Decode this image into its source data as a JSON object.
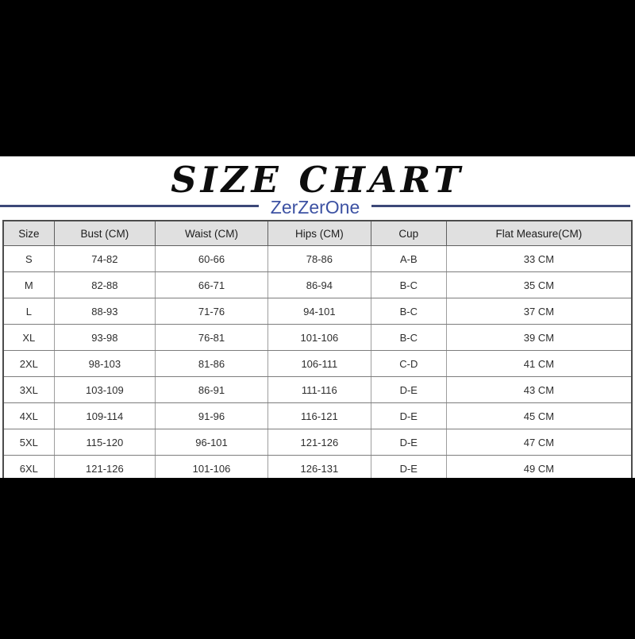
{
  "page": {
    "top_band_color": "#000000",
    "bottom_band_color": "#000000",
    "content_background": "#ffffff"
  },
  "header": {
    "title": "SIZE CHART",
    "brand": "ZerZerOne",
    "brand_color": "#3d52a3",
    "divider_line_color": "#3c4878",
    "title_color": "#0d0d0d"
  },
  "table_style": {
    "header_background": "#e0e0e0",
    "outer_border_color": "#4c4c4c",
    "inner_border_color": "#7d7d7d"
  },
  "chart_data": {
    "type": "table",
    "title": "SIZE CHART",
    "subtitle": "ZerZerOne",
    "columns": [
      "Size",
      "Bust (CM)",
      "Waist (CM)",
      "Hips (CM)",
      "Cup",
      "Flat Measure(CM)"
    ],
    "column_widths_percent": [
      8.1,
      16.1,
      17.9,
      16.4,
      12.0,
      29.5
    ],
    "rows": [
      [
        "S",
        "74-82",
        "60-66",
        "78-86",
        "A-B",
        "33 CM"
      ],
      [
        "M",
        "82-88",
        "66-71",
        "86-94",
        "B-C",
        "35 CM"
      ],
      [
        "L",
        "88-93",
        "71-76",
        "94-101",
        "B-C",
        "37 CM"
      ],
      [
        "XL",
        "93-98",
        "76-81",
        "101-106",
        "B-C",
        "39 CM"
      ],
      [
        "2XL",
        "98-103",
        "81-86",
        "106-111",
        "C-D",
        "41 CM"
      ],
      [
        "3XL",
        "103-109",
        "86-91",
        "111-116",
        "D-E",
        "43 CM"
      ],
      [
        "4XL",
        "109-114",
        "91-96",
        "116-121",
        "D-E",
        "45 CM"
      ],
      [
        "5XL",
        "115-120",
        "96-101",
        "121-126",
        "D-E",
        "47 CM"
      ],
      [
        "6XL",
        "121-126",
        "101-106",
        "126-131",
        "D-E",
        "49 CM"
      ]
    ]
  }
}
